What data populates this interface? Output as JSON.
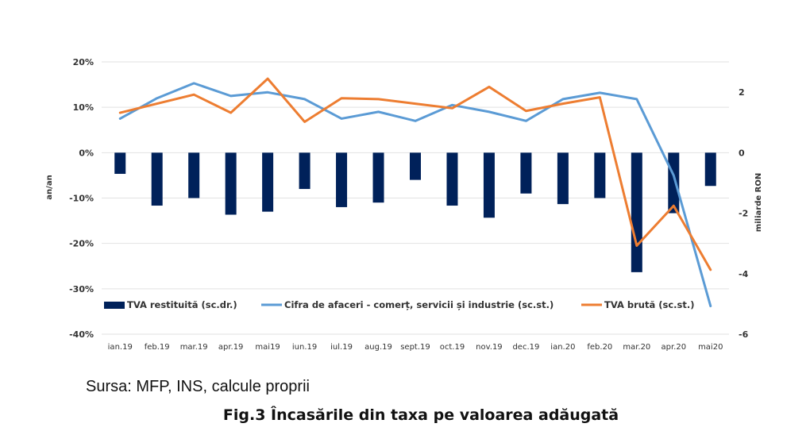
{
  "chart_data": {
    "type": "bar+line",
    "categories": [
      "ian.19",
      "feb.19",
      "mar.19",
      "apr.19",
      "mai19",
      "iun.19",
      "iul.19",
      "aug.19",
      "sept.19",
      "oct.19",
      "nov.19",
      "dec.19",
      "ian.20",
      "feb.20",
      "mar.20",
      "apr.20",
      "mai20"
    ],
    "bar_series": {
      "name": "TVA restituită (sc.dr.)",
      "axis": "right",
      "color": "#00215a",
      "values": [
        -0.7,
        -1.75,
        -1.5,
        -2.05,
        -1.95,
        -1.2,
        -1.8,
        -1.65,
        -0.9,
        -1.75,
        -2.15,
        -1.35,
        -1.7,
        -1.5,
        -3.95,
        -2.0,
        -1.1
      ]
    },
    "line_series": [
      {
        "name": "Cifra de afaceri - comerț, servicii și industrie (sc.st.)",
        "axis": "left",
        "color": "#5b9bd5",
        "values": [
          0.075,
          0.12,
          0.153,
          0.125,
          0.133,
          0.118,
          0.075,
          0.09,
          0.07,
          0.105,
          0.09,
          0.07,
          0.118,
          0.132,
          0.118,
          -0.05,
          -0.338
        ]
      },
      {
        "name": "TVA brută (sc.st.)",
        "axis": "left",
        "color": "#ed7d31",
        "values": [
          0.088,
          0.108,
          0.128,
          0.088,
          0.163,
          0.068,
          0.12,
          0.118,
          0.108,
          0.098,
          0.145,
          0.092,
          0.108,
          0.122,
          -0.205,
          -0.117,
          -0.258
        ]
      }
    ],
    "left_axis": {
      "title": "an/an",
      "ylim": [
        -0.4,
        0.2
      ],
      "ticks": [
        "20%",
        "10%",
        "0%",
        "-10%",
        "-20%",
        "-30%",
        "-40%"
      ]
    },
    "right_axis": {
      "title": "miliarde RON",
      "ylim": [
        -6,
        3
      ],
      "ticks": [
        "2",
        "0",
        "-2",
        "-4",
        "-6"
      ]
    },
    "legend_position": "bottom-inside",
    "grid": true
  },
  "source": "Sursa: MFP, INS, calcule proprii",
  "caption": "Fig.3 Încasările din taxa pe valoarea adăugată"
}
